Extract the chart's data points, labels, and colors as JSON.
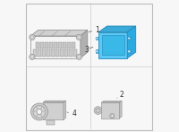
{
  "background_color": "#f7f7f7",
  "border_color": "#bbbbbb",
  "line_color": "#aaaaaa",
  "dark_line": "#888888",
  "blue_fill": "#5bc8f5",
  "blue_dark": "#2288bb",
  "blue_mid": "#3aaad8",
  "gray_fill": "#e8e8e8",
  "gray_mid": "#d0d0d0",
  "gray_dark": "#b0b0b0",
  "white_fill": "#f5f5f5",
  "label_fontsize": 5.5,
  "label_color": "#333333",
  "divider_color": "#cccccc",
  "quadrants": {
    "divx": 0.51,
    "divy": 0.5
  }
}
